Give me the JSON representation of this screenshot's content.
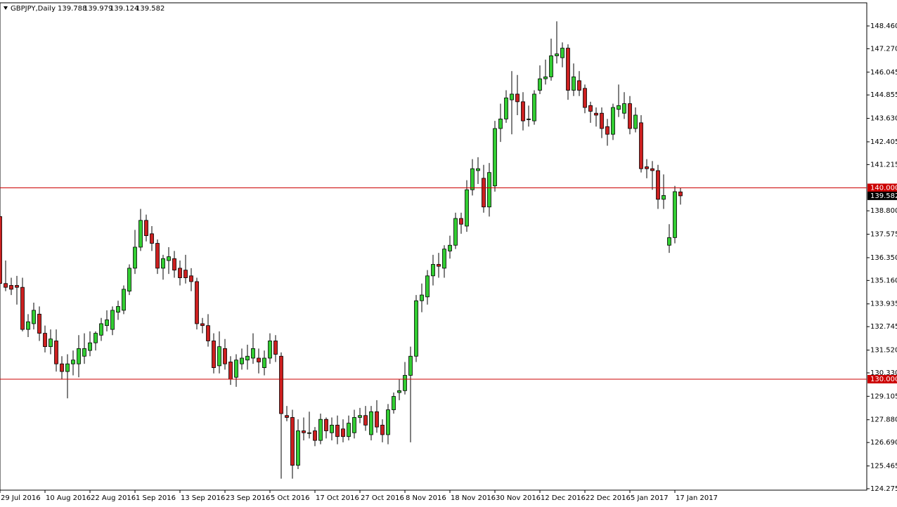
{
  "chart_data": {
    "type": "candlestick",
    "symbol": "GBPJPY,Daily",
    "up_color": "#32cd32",
    "down_color": "#cc2020",
    "categories": [
      "29 Jul 2016",
      null,
      null,
      null,
      null,
      null,
      null,
      null,
      "10 Aug 2016",
      null,
      null,
      null,
      null,
      null,
      null,
      null,
      "22 Aug 2016",
      null,
      null,
      null,
      null,
      null,
      null,
      null,
      "1 Sep 2016",
      null,
      null,
      null,
      null,
      null,
      null,
      null,
      "13 Sep 2016",
      null,
      null,
      null,
      null,
      null,
      null,
      null,
      "23 Sep 2016",
      null,
      null,
      null,
      null,
      null,
      null,
      null,
      "5 Oct 2016",
      null,
      null,
      null,
      null,
      null,
      null,
      null,
      "17 Oct 2016",
      null,
      null,
      null,
      null,
      null,
      null,
      null,
      "27 Oct 2016",
      null,
      null,
      null,
      null,
      null,
      null,
      null,
      "8 Nov 2016",
      null,
      null,
      null,
      null,
      null,
      null,
      null,
      "18 Nov 2016",
      null,
      null,
      null,
      null,
      null,
      null,
      null,
      "30 Nov 2016",
      null,
      null,
      null,
      null,
      null,
      null,
      null,
      "12 Dec 2016",
      null,
      null,
      null,
      null,
      null,
      null,
      null,
      "22 Dec 2016",
      null,
      null,
      null,
      null,
      null,
      null,
      null,
      "5 Jan 2017",
      null,
      null,
      null,
      null,
      null,
      null,
      null,
      "17 Jan 2017",
      null
    ],
    "open": [
      138.5,
      135.0,
      134.9,
      134.9,
      134.8,
      132.6,
      132.9,
      133.4,
      132.4,
      131.7,
      132.0,
      130.8,
      130.4,
      130.8,
      130.8,
      131.2,
      131.5,
      131.9,
      132.3,
      132.8,
      132.6,
      133.5,
      133.6,
      134.6,
      135.8,
      136.9,
      138.3,
      137.6,
      137.1,
      135.8,
      136.2,
      136.3,
      135.8,
      135.7,
      135.4,
      135.1,
      132.9,
      132.8,
      132.0,
      130.7,
      131.6,
      130.9,
      130.1,
      130.8,
      131.0,
      131.1,
      131.1,
      130.6,
      131.1,
      132.0,
      131.2,
      128.1,
      128.0,
      125.5,
      127.3,
      127.2,
      127.3,
      126.8,
      127.9,
      127.2,
      127.6,
      127.4,
      127.0,
      127.2,
      128.0,
      128.1,
      127.1,
      128.3,
      127.6,
      127.1,
      128.4,
      129.3,
      129.4,
      130.2,
      131.2,
      134.1,
      134.3,
      135.4,
      136.0,
      135.8,
      136.7,
      137.0,
      138.4,
      138.0,
      139.9,
      140.9,
      140.5,
      139.0,
      140.1,
      143.1,
      143.6,
      144.6,
      144.9,
      144.5,
      143.6,
      143.5,
      145.1,
      145.7,
      145.8,
      146.9,
      146.8,
      147.3,
      145.1,
      145.6,
      145.2,
      144.3,
      143.9,
      143.9,
      143.2,
      142.8,
      144.1,
      143.9,
      144.4,
      143.1,
      143.4,
      141.1,
      141.0,
      140.9,
      139.4,
      137.0,
      137.4,
      139.788
    ],
    "high": [
      139.25,
      136.2,
      135.3,
      135.4,
      135.3,
      133.4,
      134.0,
      133.8,
      132.8,
      132.6,
      132.6,
      131.2,
      131.3,
      131.5,
      132.3,
      132.4,
      132.5,
      132.5,
      133.2,
      133.6,
      133.8,
      134.1,
      134.9,
      136.0,
      137.8,
      138.9,
      138.6,
      138.0,
      137.3,
      136.5,
      136.9,
      136.7,
      136.2,
      136.5,
      135.8,
      135.3,
      133.2,
      133.4,
      132.4,
      132.5,
      132.1,
      131.2,
      131.3,
      131.6,
      131.8,
      132.4,
      131.6,
      131.5,
      132.4,
      132.3,
      131.4,
      128.6,
      128.4,
      127.9,
      128.0,
      128.3,
      127.5,
      128.2,
      128.0,
      128.0,
      128.1,
      127.9,
      128.1,
      128.4,
      128.5,
      128.6,
      128.6,
      128.9,
      127.9,
      128.7,
      129.3,
      130.0,
      130.9,
      131.7,
      134.4,
      135.0,
      135.7,
      136.5,
      136.6,
      137.0,
      137.5,
      138.7,
      138.7,
      140.4,
      141.5,
      141.6,
      141.2,
      141.3,
      143.5,
      144.4,
      145.1,
      146.1,
      145.9,
      145.0,
      144.3,
      145.1,
      146.4,
      146.7,
      147.8,
      148.7,
      147.6,
      147.5,
      146.5,
      146.1,
      145.4,
      144.5,
      144.2,
      144.2,
      143.6,
      144.4,
      145.4,
      145.0,
      144.8,
      144.2,
      143.8,
      141.5,
      141.4,
      141.2,
      140.7,
      138.1,
      140.1,
      139.979
    ],
    "low": [
      134.77,
      134.6,
      134.4,
      133.9,
      132.5,
      132.2,
      132.6,
      132.0,
      131.4,
      131.3,
      130.4,
      130.0,
      129.0,
      130.2,
      130.1,
      130.8,
      131.2,
      131.5,
      132.0,
      132.5,
      132.3,
      133.1,
      133.4,
      134.4,
      135.5,
      136.7,
      137.2,
      136.7,
      135.5,
      135.2,
      135.5,
      135.3,
      134.9,
      135.0,
      134.6,
      132.6,
      132.4,
      131.7,
      130.3,
      130.3,
      130.5,
      129.7,
      129.6,
      130.5,
      130.5,
      130.8,
      130.3,
      130.2,
      130.8,
      130.9,
      124.8,
      127.8,
      124.8,
      125.3,
      126.8,
      126.9,
      126.5,
      126.6,
      126.9,
      126.8,
      126.6,
      126.7,
      126.8,
      126.9,
      127.7,
      127.3,
      126.8,
      127.2,
      126.7,
      126.6,
      128.2,
      128.9,
      129.2,
      126.7,
      130.9,
      133.5,
      133.9,
      134.9,
      135.3,
      135.3,
      136.3,
      136.8,
      137.6,
      137.7,
      139.6,
      140.2,
      138.7,
      138.5,
      139.8,
      142.4,
      143.4,
      142.8,
      143.8,
      143.0,
      143.2,
      143.3,
      144.9,
      145.4,
      145.6,
      146.5,
      146.3,
      144.6,
      144.8,
      144.8,
      143.9,
      143.4,
      143.2,
      142.6,
      142.2,
      142.5,
      143.7,
      143.6,
      142.8,
      142.9,
      140.8,
      140.5,
      139.9,
      138.9,
      138.9,
      136.6,
      137.1,
      139.124
    ],
    "close": [
      135.0,
      134.8,
      134.7,
      134.8,
      132.6,
      133.0,
      133.6,
      132.4,
      131.7,
      132.1,
      130.8,
      130.4,
      130.8,
      131.0,
      131.6,
      131.6,
      131.9,
      132.4,
      132.9,
      133.1,
      133.6,
      133.8,
      134.7,
      135.8,
      136.9,
      138.3,
      137.5,
      137.1,
      135.8,
      136.3,
      136.4,
      135.7,
      135.3,
      135.3,
      135.1,
      132.9,
      132.8,
      132.0,
      130.6,
      131.7,
      130.8,
      130.0,
      131.0,
      131.1,
      131.2,
      131.6,
      130.9,
      131.1,
      132.0,
      131.3,
      128.2,
      128.0,
      125.5,
      127.3,
      127.2,
      127.2,
      126.8,
      127.9,
      127.3,
      127.6,
      127.0,
      127.0,
      127.7,
      128.0,
      128.1,
      127.6,
      128.3,
      127.5,
      127.1,
      128.4,
      129.1,
      129.4,
      130.2,
      131.2,
      134.1,
      134.4,
      135.4,
      136.0,
      135.9,
      136.8,
      137.0,
      138.4,
      138.1,
      139.9,
      141.0,
      141.0,
      139.0,
      140.8,
      143.1,
      143.6,
      144.7,
      144.9,
      144.5,
      143.5,
      143.6,
      144.9,
      145.7,
      145.8,
      146.9,
      147.0,
      147.3,
      145.1,
      145.8,
      145.1,
      144.2,
      144.0,
      143.8,
      143.1,
      142.8,
      144.2,
      144.3,
      144.4,
      143.1,
      143.8,
      141.0,
      141.0,
      140.9,
      139.4,
      139.6,
      137.4,
      139.8,
      139.582
    ],
    "ylim": [
      124.2,
      149.67
    ],
    "yticks": [
      {
        "value": 148.46,
        "label": "148.460"
      },
      {
        "value": 147.27,
        "label": "147.270"
      },
      {
        "value": 146.045,
        "label": "146.045"
      },
      {
        "value": 144.855,
        "label": "144.855"
      },
      {
        "value": 143.63,
        "label": "143.630"
      },
      {
        "value": 142.405,
        "label": "142.405"
      },
      {
        "value": 141.215,
        "label": "141.215"
      },
      {
        "value": 138.8,
        "label": "138.800"
      },
      {
        "value": 137.575,
        "label": "137.575"
      },
      {
        "value": 136.35,
        "label": "136.350"
      },
      {
        "value": 135.16,
        "label": "135.160"
      },
      {
        "value": 133.935,
        "label": "133.935"
      },
      {
        "value": 132.745,
        "label": "132.745"
      },
      {
        "value": 131.52,
        "label": "131.520"
      },
      {
        "value": 130.33,
        "label": "130.330"
      },
      {
        "value": 129.105,
        "label": "129.105"
      },
      {
        "value": 127.88,
        "label": "127.880"
      },
      {
        "value": 126.69,
        "label": "126.690"
      },
      {
        "value": 125.465,
        "label": "125.465"
      },
      {
        "value": 124.275,
        "label": "124.275"
      }
    ],
    "hlines": [
      {
        "value": 140,
        "label": "140.000"
      },
      {
        "value": 130,
        "label": "130.000"
      }
    ],
    "hline_color": "#cc0000"
  }
}
